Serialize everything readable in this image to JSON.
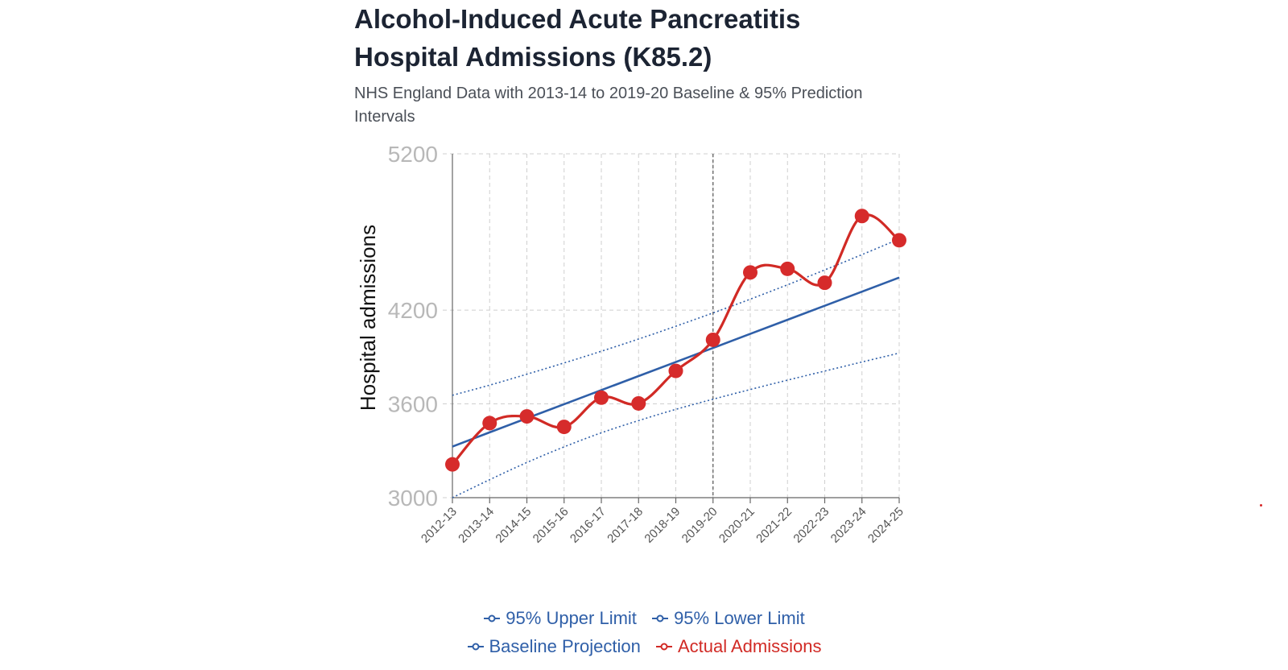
{
  "header": {
    "title_line1": "Alcohol-Induced Acute Pancreatitis",
    "title_line2": "Hospital Admissions (K85.2)",
    "subtitle": "NHS England Data with 2013-14 to 2019-20 Baseline & 95% Prediction Intervals"
  },
  "chart_data": {
    "type": "line",
    "title": "Alcohol-Induced Acute Pancreatitis Hospital Admissions (K85.2)",
    "subtitle": "NHS England Data with 2013-14 to 2019-20 Baseline & 95% Prediction Intervals",
    "xlabel": "",
    "ylabel": "Hospital admissions",
    "ylim": [
      3000,
      5200
    ],
    "yticks": [
      "3000",
      "3600",
      "4200",
      "5200"
    ],
    "grid": true,
    "categories": [
      "2012-13",
      "2013-14",
      "2014-15",
      "2015-16",
      "2016-17",
      "2017-18",
      "2018-19",
      "2019-20",
      "2020-21",
      "2021-22",
      "2022-23",
      "2023-24",
      "2024-25"
    ],
    "reference_line": "2019-20",
    "legend_position": "bottom",
    "series": [
      {
        "name": "95% Upper Limit",
        "color": "#2f5fa8",
        "style": "dotted",
        "values": [
          3655,
          3720,
          3790,
          3862,
          3937,
          4015,
          4097,
          4182,
          4270,
          4362,
          4457,
          4555,
          4655
        ]
      },
      {
        "name": "95% Lower Limit",
        "color": "#2f5fa8",
        "style": "dotted",
        "values": [
          3000,
          3115,
          3225,
          3325,
          3415,
          3493,
          3565,
          3630,
          3692,
          3752,
          3810,
          3868,
          3925
        ]
      },
      {
        "name": "Baseline Projection",
        "color": "#2f5fa8",
        "style": "solid",
        "values": [
          3327,
          3418,
          3508,
          3598,
          3688,
          3778,
          3868,
          3958,
          4048,
          4138,
          4228,
          4318,
          4408
        ]
      },
      {
        "name": "Actual Admissions",
        "color": "#d12a25",
        "style": "solid-markers",
        "values": [
          3213,
          3477,
          3520,
          3453,
          3640,
          3603,
          3811,
          4010,
          4441,
          4464,
          4375,
          4802,
          4647
        ]
      }
    ]
  },
  "legend": {
    "items": [
      {
        "label": "95% Upper Limit",
        "color": "#2f5fa8"
      },
      {
        "label": "95% Lower Limit",
        "color": "#2f5fa8"
      },
      {
        "label": "Baseline Projection",
        "color": "#2f5fa8"
      },
      {
        "label": "Actual Admissions",
        "color": "#d12a25"
      }
    ]
  }
}
